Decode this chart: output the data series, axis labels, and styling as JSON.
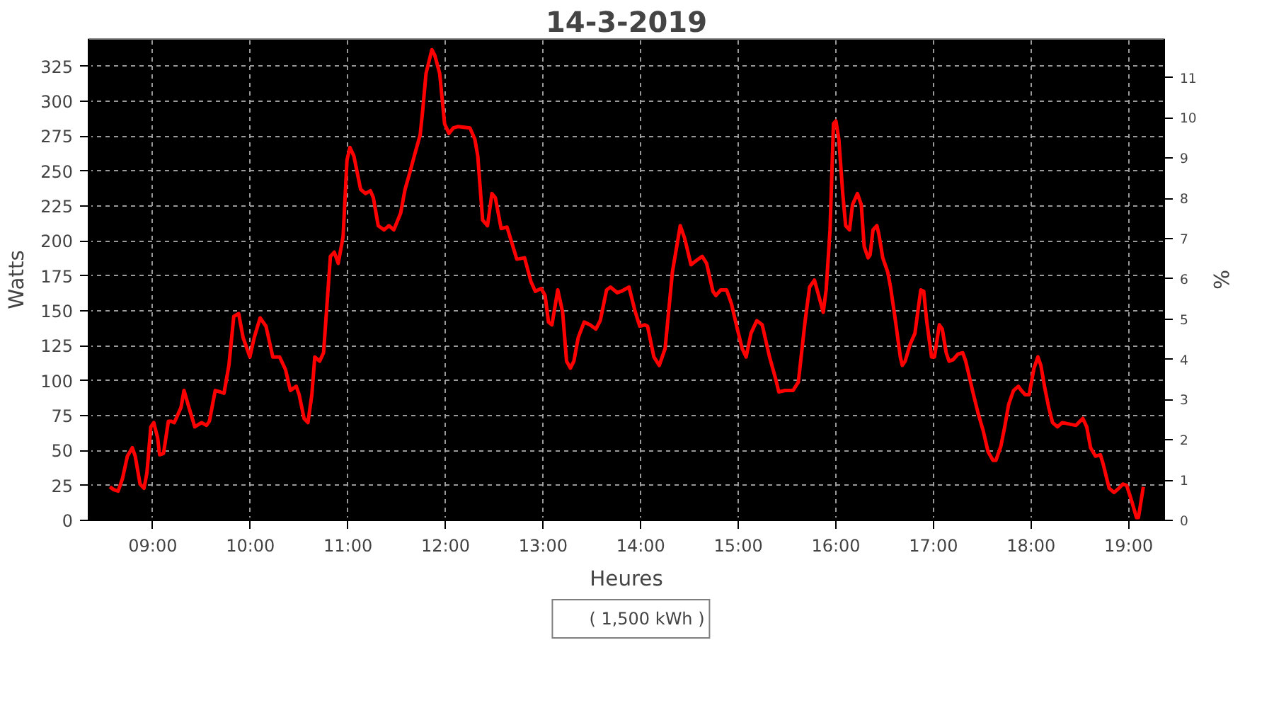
{
  "chart_data": {
    "type": "line",
    "title": "14-3-2019",
    "xlabel": "Heures",
    "ylabel": "Watts",
    "y2label": "%",
    "xlim": [
      8.341,
      19.365
    ],
    "ylim": [
      0,
      344.7
    ],
    "y2lim": [
      0,
      11.96
    ],
    "xticks": [
      {
        "value": 9,
        "label": "09:00"
      },
      {
        "value": 10,
        "label": "10:00"
      },
      {
        "value": 11,
        "label": "11:00"
      },
      {
        "value": 12,
        "label": "12:00"
      },
      {
        "value": 13,
        "label": "13:00"
      },
      {
        "value": 14,
        "label": "14:00"
      },
      {
        "value": 15,
        "label": "15:00"
      },
      {
        "value": 16,
        "label": "16:00"
      },
      {
        "value": 17,
        "label": "17:00"
      },
      {
        "value": 18,
        "label": "18:00"
      },
      {
        "value": 19,
        "label": "19:00"
      }
    ],
    "yticks": [
      0,
      25,
      50,
      75,
      100,
      125,
      150,
      175,
      200,
      225,
      250,
      275,
      300,
      325
    ],
    "y2ticks": [
      0,
      1,
      2,
      3,
      4,
      5,
      6,
      7,
      8,
      9,
      10,
      11
    ],
    "grid": true,
    "legend": "bottom",
    "line_style": "solid",
    "series": [
      {
        "name": "( 1,500 kWh )",
        "color": "#ff0000",
        "x": [
          8.56,
          8.6,
          8.645,
          8.69,
          8.74,
          8.79,
          8.82,
          8.87,
          8.91,
          8.94,
          8.98,
          9.01,
          9.05,
          9.07,
          9.11,
          9.16,
          9.19,
          9.22,
          9.29,
          9.32,
          9.37,
          9.43,
          9.5,
          9.55,
          9.58,
          9.64,
          9.69,
          9.73,
          9.78,
          9.83,
          9.88,
          9.925,
          9.995,
          10.04,
          10.1,
          10.16,
          10.23,
          10.3,
          10.36,
          10.41,
          10.47,
          10.5,
          10.55,
          10.59,
          10.63,
          10.66,
          10.71,
          10.75,
          10.82,
          10.86,
          10.9,
          10.95,
          10.99,
          11.02,
          11.06,
          11.13,
          11.18,
          11.23,
          11.26,
          11.31,
          11.37,
          11.42,
          11.47,
          11.54,
          11.585,
          11.63,
          11.68,
          11.74,
          11.765,
          11.8,
          11.86,
          11.89,
          11.94,
          11.99,
          12.035,
          12.08,
          12.13,
          12.25,
          12.3,
          12.33,
          12.38,
          12.43,
          12.475,
          12.51,
          12.57,
          12.63,
          12.665,
          12.73,
          12.81,
          12.875,
          12.92,
          12.98,
          13.02,
          13.055,
          13.09,
          13.15,
          13.2,
          13.24,
          13.28,
          13.315,
          13.36,
          13.42,
          13.48,
          13.54,
          13.585,
          13.65,
          13.69,
          13.76,
          13.8,
          13.88,
          13.945,
          13.99,
          14.04,
          14.07,
          14.135,
          14.19,
          14.25,
          14.325,
          14.405,
          14.45,
          14.515,
          14.57,
          14.63,
          14.675,
          14.74,
          14.77,
          14.82,
          14.88,
          14.93,
          14.99,
          15.04,
          15.08,
          15.13,
          15.19,
          15.245,
          15.32,
          15.38,
          15.415,
          15.48,
          15.56,
          15.615,
          15.685,
          15.73,
          15.78,
          15.8,
          15.87,
          15.9,
          15.94,
          15.975,
          16.0,
          16.03,
          16.07,
          16.1,
          16.14,
          16.17,
          16.22,
          16.26,
          16.29,
          16.33,
          16.35,
          16.38,
          16.42,
          16.44,
          16.48,
          16.53,
          16.56,
          16.61,
          16.66,
          16.68,
          16.71,
          16.76,
          16.81,
          16.85,
          16.87,
          16.9,
          16.93,
          16.98,
          17.01,
          17.06,
          17.09,
          17.13,
          17.16,
          17.2,
          17.25,
          17.3,
          17.33,
          17.37,
          17.41,
          17.46,
          17.51,
          17.56,
          17.61,
          17.64,
          17.69,
          17.73,
          17.77,
          17.82,
          17.87,
          17.9,
          17.94,
          17.98,
          18.03,
          18.07,
          18.1,
          18.14,
          18.18,
          18.22,
          18.27,
          18.32,
          18.39,
          18.46,
          18.53,
          18.57,
          18.61,
          18.66,
          18.71,
          18.74,
          18.8,
          18.85,
          18.9,
          18.94,
          18.98,
          19.03,
          19.08,
          19.1,
          19.15
        ],
        "values": [
          24,
          22,
          21,
          30,
          46,
          52,
          46,
          26,
          23,
          34,
          67,
          70,
          59,
          47,
          48,
          71,
          71,
          70,
          81,
          93,
          81,
          67,
          70,
          68,
          71,
          93,
          92,
          91,
          111,
          146,
          148,
          131,
          117,
          131,
          145,
          139,
          117,
          117,
          108,
          93,
          96,
          90,
          73,
          70,
          90,
          117,
          114,
          120,
          189,
          192,
          184,
          203,
          258,
          267,
          261,
          237,
          234,
          236,
          231,
          211,
          208,
          211,
          208,
          220,
          237,
          248,
          261,
          276,
          293,
          320,
          337,
          333,
          320,
          284,
          277,
          281,
          282,
          281,
          273,
          261,
          215,
          211,
          234,
          231,
          209,
          210,
          202,
          187,
          188,
          171,
          164,
          166,
          161,
          142,
          140,
          165,
          149,
          114,
          109,
          114,
          131,
          142,
          140,
          137,
          143,
          165,
          167,
          163,
          164,
          167,
          149,
          139,
          140,
          139,
          117,
          111,
          123,
          178,
          211,
          202,
          183,
          186,
          189,
          184,
          164,
          161,
          165,
          165,
          155,
          137,
          123,
          117,
          134,
          143,
          140,
          117,
          102,
          92,
          93,
          93,
          99,
          143,
          167,
          172,
          167,
          149,
          165,
          208,
          284,
          286,
          273,
          234,
          211,
          208,
          226,
          234,
          226,
          196,
          188,
          190,
          208,
          211,
          205,
          188,
          178,
          167,
          143,
          117,
          111,
          114,
          126,
          134,
          155,
          165,
          164,
          143,
          117,
          117,
          140,
          137,
          120,
          114,
          115,
          119,
          120,
          114,
          102,
          90,
          76,
          64,
          49,
          43,
          43,
          53,
          67,
          83,
          93,
          96,
          93,
          90,
          90,
          109,
          117,
          111,
          95,
          81,
          70,
          67,
          70,
          69,
          68,
          73,
          67,
          52,
          46,
          47,
          40,
          23,
          20,
          23,
          26,
          25,
          14,
          2,
          2,
          24
        ]
      }
    ]
  }
}
